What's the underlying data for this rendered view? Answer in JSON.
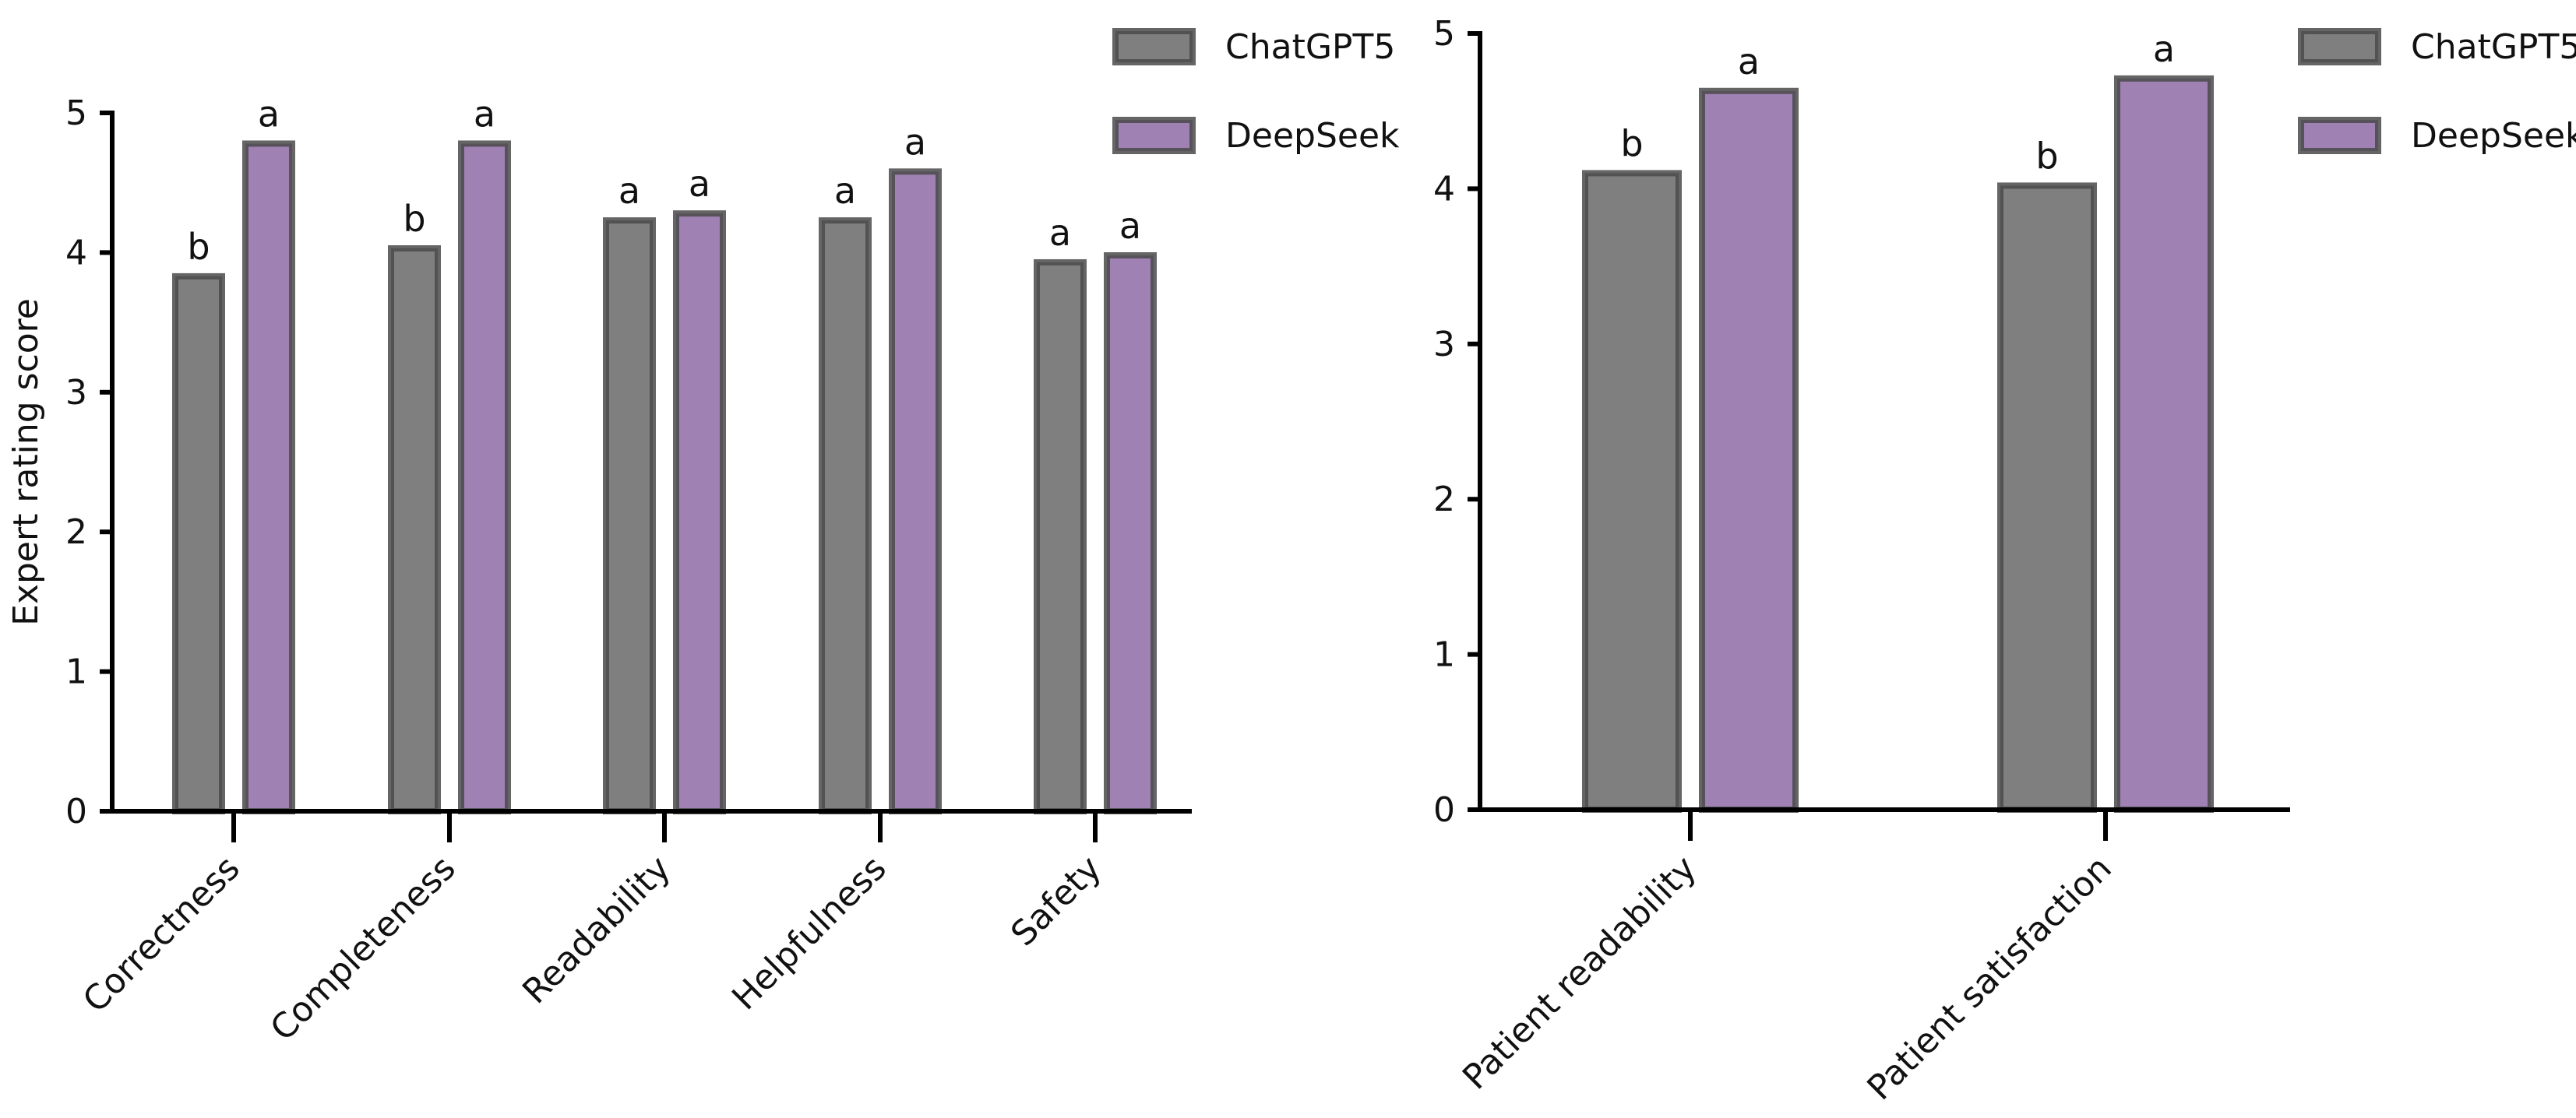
{
  "colors": {
    "ChatGPT5": "#7f7f7f",
    "DeepSeek": "#9f81b3",
    "bar_stroke": "#4a4a4a",
    "axis": "#000000"
  },
  "chart_data": [
    {
      "type": "bar",
      "ylabel": "Expert rating score",
      "ylim": [
        0,
        5
      ],
      "yticks": [
        "0",
        "1",
        "2",
        "3",
        "4",
        "5"
      ],
      "categories": [
        "Correctness",
        "Completeness",
        "Readability",
        "Helpfulness",
        "Safety"
      ],
      "series": [
        {
          "name": "ChatGPT5",
          "values": [
            3.83,
            4.03,
            4.23,
            4.23,
            3.93
          ],
          "labels": [
            "b",
            "b",
            "a",
            "a",
            "a"
          ]
        },
        {
          "name": "DeepSeek",
          "values": [
            4.78,
            4.78,
            4.28,
            4.58,
            3.98
          ],
          "labels": [
            "a",
            "a",
            "a",
            "a",
            "a"
          ]
        }
      ],
      "legend": {
        "position": "top-right",
        "entries": [
          "ChatGPT5",
          "DeepSeek"
        ]
      },
      "grid": false
    },
    {
      "type": "bar",
      "ylabel": "",
      "ylim": [
        0,
        5
      ],
      "yticks": [
        "0",
        "1",
        "2",
        "3",
        "4",
        "5"
      ],
      "categories": [
        "Patient readability",
        "Patient satisfaction"
      ],
      "series": [
        {
          "name": "ChatGPT5",
          "values": [
            4.1,
            4.02
          ],
          "labels": [
            "b",
            "b"
          ]
        },
        {
          "name": "DeepSeek",
          "values": [
            4.63,
            4.71
          ],
          "labels": [
            "a",
            "a"
          ]
        }
      ],
      "legend": {
        "position": "top-right",
        "entries": [
          "ChatGPT5",
          "DeepSeek"
        ]
      },
      "grid": false
    }
  ]
}
